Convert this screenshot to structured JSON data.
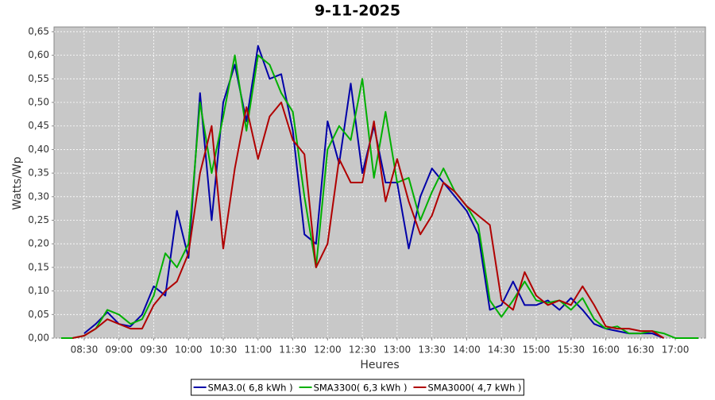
{
  "chart_data": {
    "type": "line",
    "title": "9-11-2025",
    "x_label": "Heures",
    "y_label": "Watts/Wp",
    "x": [
      "08:10",
      "08:20",
      "08:30",
      "08:40",
      "08:50",
      "09:00",
      "09:10",
      "09:20",
      "09:30",
      "09:40",
      "09:50",
      "10:00",
      "10:10",
      "10:20",
      "10:30",
      "10:40",
      "10:50",
      "11:00",
      "11:10",
      "11:20",
      "11:30",
      "11:40",
      "11:50",
      "12:00",
      "12:10",
      "12:20",
      "12:30",
      "12:40",
      "12:50",
      "13:00",
      "13:10",
      "13:20",
      "13:30",
      "13:40",
      "13:50",
      "14:00",
      "14:10",
      "14:20",
      "14:30",
      "14:40",
      "14:50",
      "15:00",
      "15:10",
      "15:20",
      "15:30",
      "15:40",
      "15:50",
      "16:00",
      "16:10",
      "16:20",
      "16:30",
      "16:40",
      "16:50",
      "17:00",
      "17:10",
      "17:20"
    ],
    "xlim": [
      "08:04",
      "17:26"
    ],
    "xticks": [
      "08:30",
      "09:00",
      "09:30",
      "10:00",
      "10:30",
      "11:00",
      "11:30",
      "12:00",
      "12:30",
      "13:00",
      "13:30",
      "14:00",
      "14:30",
      "15:00",
      "15:30",
      "16:00",
      "16:30",
      "17:00"
    ],
    "ylim": [
      0,
      0.66
    ],
    "yticks": [
      {
        "value": 0,
        "label": "0,00"
      },
      {
        "value": 0.05,
        "label": "0,05"
      },
      {
        "value": 0.1,
        "label": "0,10"
      },
      {
        "value": 0.15,
        "label": "0,15"
      },
      {
        "value": 0.2,
        "label": "0,20"
      },
      {
        "value": 0.25,
        "label": "0,25"
      },
      {
        "value": 0.3,
        "label": "0,30"
      },
      {
        "value": 0.35,
        "label": "0,35"
      },
      {
        "value": 0.4,
        "label": "0,40"
      },
      {
        "value": 0.45,
        "label": "0,45"
      },
      {
        "value": 0.5,
        "label": "0,50"
      },
      {
        "value": 0.55,
        "label": "0,55"
      },
      {
        "value": 0.6,
        "label": "0,60"
      },
      {
        "value": 0.65,
        "label": "0,65"
      }
    ],
    "grid": true,
    "legend": "bottom",
    "series": [
      {
        "name": "SMA3.0( 6,8 kWh )",
        "color": "#0000a8",
        "values": [
          null,
          null,
          0.01,
          0.03,
          0.055,
          0.03,
          0.025,
          0.05,
          0.11,
          0.09,
          0.27,
          0.17,
          0.52,
          0.25,
          0.5,
          0.58,
          0.46,
          0.62,
          0.55,
          0.56,
          0.44,
          0.22,
          0.2,
          0.46,
          0.37,
          0.54,
          0.35,
          0.45,
          0.33,
          0.33,
          0.19,
          0.3,
          0.36,
          0.33,
          0.3,
          0.27,
          0.22,
          0.06,
          0.07,
          0.12,
          0.07,
          0.07,
          0.08,
          0.06,
          0.085,
          0.06,
          0.03,
          0.02,
          0.015,
          0.01,
          0.01,
          0.01,
          0,
          null,
          null,
          null
        ]
      },
      {
        "name": "SMA3300( 6,3 kWh )",
        "color": "#00b000",
        "values": [
          0,
          0,
          0.005,
          0.02,
          0.06,
          0.05,
          0.03,
          0.04,
          0.09,
          0.18,
          0.15,
          0.2,
          0.5,
          0.35,
          0.47,
          0.6,
          0.44,
          0.6,
          0.58,
          0.52,
          0.48,
          0.3,
          0.15,
          0.4,
          0.45,
          0.42,
          0.55,
          0.34,
          0.48,
          0.33,
          0.34,
          0.25,
          0.31,
          0.36,
          0.31,
          0.28,
          0.24,
          0.08,
          0.045,
          0.08,
          0.12,
          0.08,
          0.075,
          0.08,
          0.06,
          0.085,
          0.04,
          0.02,
          0.025,
          0.01,
          0.01,
          0.015,
          0.01,
          0,
          0,
          0
        ]
      },
      {
        "name": "SMA3000( 4,7 kWh )",
        "color": "#b00000",
        "values": [
          null,
          0,
          0.005,
          0.02,
          0.04,
          0.03,
          0.02,
          0.02,
          0.07,
          0.1,
          0.12,
          0.18,
          0.35,
          0.45,
          0.19,
          0.36,
          0.49,
          0.38,
          0.47,
          0.5,
          0.42,
          0.39,
          0.15,
          0.2,
          0.38,
          0.33,
          0.33,
          0.46,
          0.29,
          0.38,
          0.29,
          0.22,
          0.26,
          0.33,
          0.31,
          0.28,
          0.26,
          0.24,
          0.08,
          0.06,
          0.14,
          0.09,
          0.07,
          0.08,
          0.07,
          0.11,
          0.07,
          0.025,
          0.02,
          0.02,
          0.015,
          0.015,
          0,
          null,
          null,
          null
        ]
      }
    ]
  }
}
